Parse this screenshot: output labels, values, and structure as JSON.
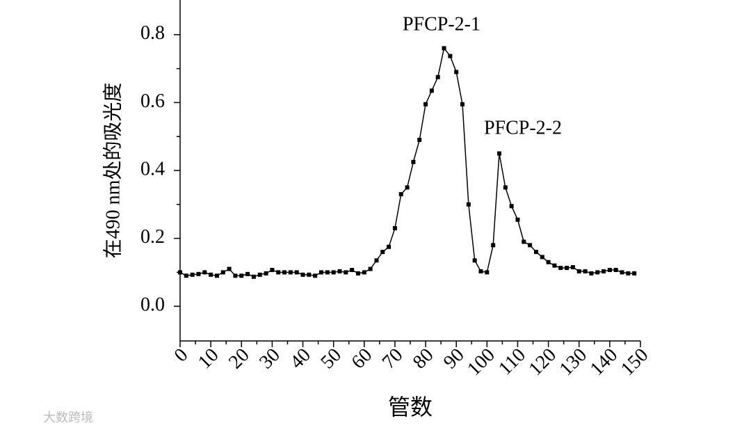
{
  "chart_data": {
    "type": "line",
    "x_label": "管数",
    "y_label": "在490 nm处的吸光度",
    "annotations": [
      "PFCP-2-1",
      "PFCP-2-2"
    ],
    "watermark": "大数跨境",
    "x": [
      0,
      2,
      4,
      6,
      8,
      10,
      12,
      14,
      16,
      18,
      20,
      22,
      24,
      26,
      28,
      30,
      32,
      34,
      36,
      38,
      40,
      42,
      44,
      46,
      48,
      50,
      52,
      54,
      56,
      58,
      60,
      62,
      64,
      66,
      68,
      70,
      72,
      74,
      76,
      78,
      80,
      82,
      84,
      86,
      88,
      90,
      92,
      94,
      96,
      98,
      100,
      102,
      104,
      106,
      108,
      110,
      112,
      114,
      116,
      118,
      120,
      122,
      124,
      126,
      128,
      130,
      132,
      134,
      136,
      138,
      140,
      142,
      144,
      146,
      148
    ],
    "series": [
      {
        "color": "#000000",
        "values": [
          0.1,
          0.09,
          0.093,
          0.095,
          0.1,
          0.093,
          0.09,
          0.1,
          0.11,
          0.09,
          0.09,
          0.095,
          0.087,
          0.093,
          0.097,
          0.107,
          0.1,
          0.1,
          0.1,
          0.1,
          0.093,
          0.093,
          0.09,
          0.1,
          0.1,
          0.1,
          0.103,
          0.1,
          0.107,
          0.097,
          0.1,
          0.11,
          0.135,
          0.16,
          0.175,
          0.23,
          0.33,
          0.35,
          0.425,
          0.49,
          0.595,
          0.635,
          0.675,
          0.76,
          0.737,
          0.69,
          0.595,
          0.3,
          0.135,
          0.103,
          0.1,
          0.18,
          0.45,
          0.35,
          0.295,
          0.255,
          0.19,
          0.18,
          0.16,
          0.145,
          0.13,
          0.12,
          0.113,
          0.113,
          0.115,
          0.103,
          0.103,
          0.097,
          0.1,
          0.103,
          0.107,
          0.107,
          0.1,
          0.097,
          0.097
        ]
      }
    ],
    "xlim": [
      0,
      150
    ],
    "ylim": [
      -0.1,
      0.9
    ],
    "xticks": [
      0,
      10,
      20,
      30,
      40,
      50,
      60,
      70,
      80,
      90,
      100,
      110,
      120,
      130,
      140,
      150
    ],
    "yticks": [
      {
        "value": 0,
        "label": "0.0"
      },
      0.2,
      0.4,
      0.6,
      0.8
    ]
  }
}
